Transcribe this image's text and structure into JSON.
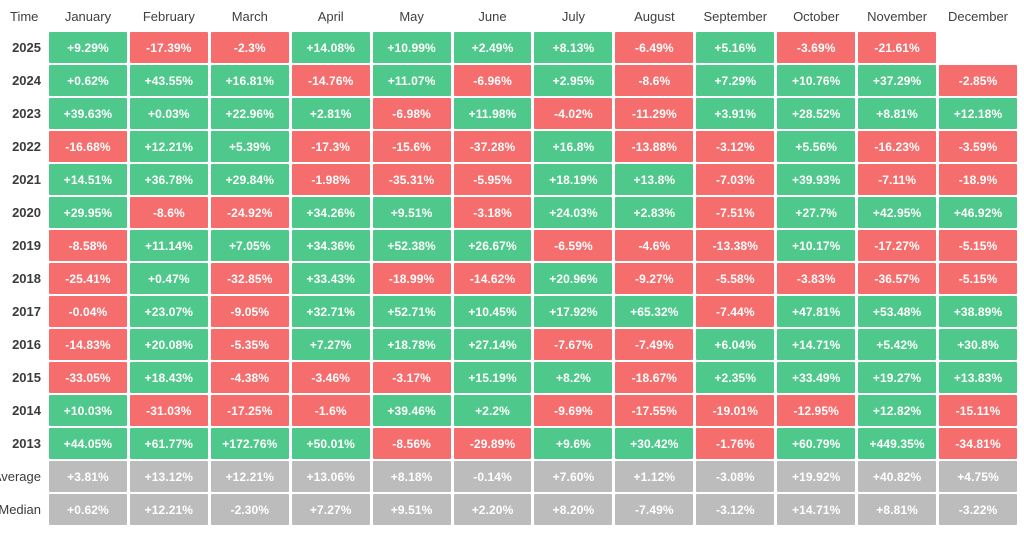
{
  "chart_data": {
    "type": "heatmap",
    "corner_label": "Time",
    "x_categories": [
      "January",
      "February",
      "March",
      "April",
      "May",
      "June",
      "July",
      "August",
      "September",
      "October",
      "November",
      "December"
    ],
    "rows": [
      {
        "label": "2025",
        "kind": "year",
        "values": [
          "+9.29%",
          "-17.39%",
          "-2.3%",
          "+14.08%",
          "+10.99%",
          "+2.49%",
          "+8.13%",
          "-6.49%",
          "+5.16%",
          "-3.69%",
          "-21.61%",
          ""
        ]
      },
      {
        "label": "2024",
        "kind": "year",
        "values": [
          "+0.62%",
          "+43.55%",
          "+16.81%",
          "-14.76%",
          "+11.07%",
          "-6.96%",
          "+2.95%",
          "-8.6%",
          "+7.29%",
          "+10.76%",
          "+37.29%",
          "-2.85%"
        ]
      },
      {
        "label": "2023",
        "kind": "year",
        "values": [
          "+39.63%",
          "+0.03%",
          "+22.96%",
          "+2.81%",
          "-6.98%",
          "+11.98%",
          "-4.02%",
          "-11.29%",
          "+3.91%",
          "+28.52%",
          "+8.81%",
          "+12.18%"
        ]
      },
      {
        "label": "2022",
        "kind": "year",
        "values": [
          "-16.68%",
          "+12.21%",
          "+5.39%",
          "-17.3%",
          "-15.6%",
          "-37.28%",
          "+16.8%",
          "-13.88%",
          "-3.12%",
          "+5.56%",
          "-16.23%",
          "-3.59%"
        ]
      },
      {
        "label": "2021",
        "kind": "year",
        "values": [
          "+14.51%",
          "+36.78%",
          "+29.84%",
          "-1.98%",
          "-35.31%",
          "-5.95%",
          "+18.19%",
          "+13.8%",
          "-7.03%",
          "+39.93%",
          "-7.11%",
          "-18.9%"
        ]
      },
      {
        "label": "2020",
        "kind": "year",
        "values": [
          "+29.95%",
          "-8.6%",
          "-24.92%",
          "+34.26%",
          "+9.51%",
          "-3.18%",
          "+24.03%",
          "+2.83%",
          "-7.51%",
          "+27.7%",
          "+42.95%",
          "+46.92%"
        ]
      },
      {
        "label": "2019",
        "kind": "year",
        "values": [
          "-8.58%",
          "+11.14%",
          "+7.05%",
          "+34.36%",
          "+52.38%",
          "+26.67%",
          "-6.59%",
          "-4.6%",
          "-13.38%",
          "+10.17%",
          "-17.27%",
          "-5.15%"
        ]
      },
      {
        "label": "2018",
        "kind": "year",
        "values": [
          "-25.41%",
          "+0.47%",
          "-32.85%",
          "+33.43%",
          "-18.99%",
          "-14.62%",
          "+20.96%",
          "-9.27%",
          "-5.58%",
          "-3.83%",
          "-36.57%",
          "-5.15%"
        ]
      },
      {
        "label": "2017",
        "kind": "year",
        "values": [
          "-0.04%",
          "+23.07%",
          "-9.05%",
          "+32.71%",
          "+52.71%",
          "+10.45%",
          "+17.92%",
          "+65.32%",
          "-7.44%",
          "+47.81%",
          "+53.48%",
          "+38.89%"
        ]
      },
      {
        "label": "2016",
        "kind": "year",
        "values": [
          "-14.83%",
          "+20.08%",
          "-5.35%",
          "+7.27%",
          "+18.78%",
          "+27.14%",
          "-7.67%",
          "-7.49%",
          "+6.04%",
          "+14.71%",
          "+5.42%",
          "+30.8%"
        ]
      },
      {
        "label": "2015",
        "kind": "year",
        "values": [
          "-33.05%",
          "+18.43%",
          "-4.38%",
          "-3.46%",
          "-3.17%",
          "+15.19%",
          "+8.2%",
          "-18.67%",
          "+2.35%",
          "+33.49%",
          "+19.27%",
          "+13.83%"
        ]
      },
      {
        "label": "2014",
        "kind": "year",
        "values": [
          "+10.03%",
          "-31.03%",
          "-17.25%",
          "-1.6%",
          "+39.46%",
          "+2.2%",
          "-9.69%",
          "-17.55%",
          "-19.01%",
          "-12.95%",
          "+12.82%",
          "-15.11%"
        ]
      },
      {
        "label": "2013",
        "kind": "year",
        "values": [
          "+44.05%",
          "+61.77%",
          "+172.76%",
          "+50.01%",
          "-8.56%",
          "-29.89%",
          "+9.6%",
          "+30.42%",
          "-1.76%",
          "+60.79%",
          "+449.35%",
          "-34.81%"
        ]
      },
      {
        "label": "Average",
        "kind": "summary",
        "values": [
          "+3.81%",
          "+13.12%",
          "+12.21%",
          "+13.06%",
          "+8.18%",
          "-0.14%",
          "+7.60%",
          "+1.12%",
          "-3.08%",
          "+19.92%",
          "+40.82%",
          "+4.75%"
        ]
      },
      {
        "label": "Median",
        "kind": "summary",
        "values": [
          "+0.62%",
          "+12.21%",
          "-2.30%",
          "+7.27%",
          "+9.51%",
          "+2.20%",
          "+8.20%",
          "-7.49%",
          "-3.12%",
          "+14.71%",
          "+8.81%",
          "-3.22%"
        ]
      }
    ],
    "color_rules": {
      "positive": "green",
      "negative": "red",
      "summary_rows": "gray",
      "empty_cells": "transparent"
    },
    "colors": {
      "green": "#4fc98b",
      "red": "#f66d6d",
      "gray": "#bcbcbc",
      "cell_text": "#ffffff",
      "header_text": "#3f3f3f"
    }
  }
}
